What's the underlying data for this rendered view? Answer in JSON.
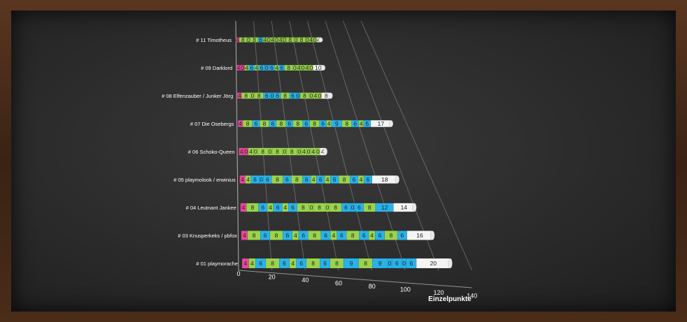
{
  "chart_data": {
    "type": "bar",
    "orientation": "horizontal",
    "stacked": true,
    "view": "3d-perspective",
    "xlabel": "Einzelpunkte",
    "xlim": [
      0,
      140
    ],
    "xticks": [
      0,
      20,
      40,
      60,
      80,
      100,
      120,
      140
    ],
    "grid": true,
    "legend": "none",
    "categories": [
      "# 11 Timotheus",
      "# 09 Darklord",
      "# 08 Elfenzauber / Junker Jörg",
      "# 07 Die Osebergs",
      "# 06 Schoko-Queen",
      "# 05 playmolook / erwinius",
      "# 04 Leutnant Jankee",
      "# 03 Knusperkeks / pbfox",
      "# 01 playmorache"
    ],
    "colors": {
      "pink": "#e8479a",
      "green": "#9bd44c",
      "blue": "#29b2ea",
      "white": "#f4f4f4"
    },
    "rows": [
      {
        "segments": [
          {
            "v": 4,
            "c": "pink"
          },
          {
            "v": 8,
            "c": "green"
          },
          {
            "v": 0,
            "c": "green"
          },
          {
            "v": 8,
            "c": "green"
          },
          {
            "v": 6,
            "c": "blue"
          },
          {
            "v": 4,
            "c": "green"
          },
          {
            "v": 0,
            "c": "green"
          },
          {
            "v": 4,
            "c": "green"
          },
          {
            "v": 0,
            "c": "green"
          },
          {
            "v": 4,
            "c": "green"
          },
          {
            "v": 0,
            "c": "green"
          },
          {
            "v": 8,
            "c": "green"
          },
          {
            "v": 0,
            "c": "green"
          },
          {
            "v": 8,
            "c": "green"
          },
          {
            "v": 0,
            "c": "green"
          },
          {
            "v": 4,
            "c": "green"
          },
          {
            "v": 0,
            "c": "green"
          },
          {
            "v": 4,
            "c": "white"
          }
        ]
      },
      {
        "segments": [
          {
            "v": 4,
            "c": "pink"
          },
          {
            "v": 0,
            "c": "pink"
          },
          {
            "v": 4,
            "c": "green"
          },
          {
            "v": 6,
            "c": "blue"
          },
          {
            "v": 4,
            "c": "green"
          },
          {
            "v": 6,
            "c": "blue"
          },
          {
            "v": 0,
            "c": "blue"
          },
          {
            "v": 6,
            "c": "blue"
          },
          {
            "v": 4,
            "c": "green"
          },
          {
            "v": 6,
            "c": "blue"
          },
          {
            "v": 8,
            "c": "green"
          },
          {
            "v": 0,
            "c": "green"
          },
          {
            "v": 4,
            "c": "green"
          },
          {
            "v": 0,
            "c": "green"
          },
          {
            "v": 4,
            "c": "green"
          },
          {
            "v": 0,
            "c": "green"
          },
          {
            "v": 10,
            "c": "white"
          }
        ]
      },
      {
        "segments": [
          {
            "v": 4,
            "c": "pink"
          },
          {
            "v": 8,
            "c": "green"
          },
          {
            "v": 0,
            "c": "green"
          },
          {
            "v": 8,
            "c": "green"
          },
          {
            "v": 6,
            "c": "blue"
          },
          {
            "v": 0,
            "c": "blue"
          },
          {
            "v": 6,
            "c": "blue"
          },
          {
            "v": 8,
            "c": "green"
          },
          {
            "v": 6,
            "c": "blue"
          },
          {
            "v": 0,
            "c": "blue"
          },
          {
            "v": 8,
            "c": "green"
          },
          {
            "v": 0,
            "c": "green"
          },
          {
            "v": 4,
            "c": "green"
          },
          {
            "v": 0,
            "c": "green"
          },
          {
            "v": 8,
            "c": "white"
          }
        ]
      },
      {
        "segments": [
          {
            "v": 4,
            "c": "pink"
          },
          {
            "v": 8,
            "c": "green"
          },
          {
            "v": 6,
            "c": "blue"
          },
          {
            "v": 8,
            "c": "green"
          },
          {
            "v": 6,
            "c": "blue"
          },
          {
            "v": 8,
            "c": "green"
          },
          {
            "v": 6,
            "c": "blue"
          },
          {
            "v": 8,
            "c": "green"
          },
          {
            "v": 6,
            "c": "blue"
          },
          {
            "v": 8,
            "c": "green"
          },
          {
            "v": 6,
            "c": "blue"
          },
          {
            "v": 4,
            "c": "green"
          },
          {
            "v": 9,
            "c": "blue"
          },
          {
            "v": 8,
            "c": "green"
          },
          {
            "v": 6,
            "c": "blue"
          },
          {
            "v": 4,
            "c": "green"
          },
          {
            "v": 6,
            "c": "blue"
          },
          {
            "v": 17,
            "c": "white"
          }
        ]
      },
      {
        "segments": [
          {
            "v": 4,
            "c": "pink"
          },
          {
            "v": 0,
            "c": "pink"
          },
          {
            "v": 4,
            "c": "green"
          },
          {
            "v": 0,
            "c": "green"
          },
          {
            "v": 8,
            "c": "green"
          },
          {
            "v": 0,
            "c": "green"
          },
          {
            "v": 8,
            "c": "green"
          },
          {
            "v": 0,
            "c": "green"
          },
          {
            "v": 8,
            "c": "green"
          },
          {
            "v": 0,
            "c": "green"
          },
          {
            "v": 4,
            "c": "green"
          },
          {
            "v": 0,
            "c": "green"
          },
          {
            "v": 4,
            "c": "green"
          },
          {
            "v": 0,
            "c": "green"
          },
          {
            "v": 4,
            "c": "white"
          }
        ]
      },
      {
        "segments": [
          {
            "v": 4,
            "c": "pink"
          },
          {
            "v": 4,
            "c": "green"
          },
          {
            "v": 6,
            "c": "blue"
          },
          {
            "v": 0,
            "c": "blue"
          },
          {
            "v": 6,
            "c": "blue"
          },
          {
            "v": 8,
            "c": "green"
          },
          {
            "v": 6,
            "c": "blue"
          },
          {
            "v": 8,
            "c": "green"
          },
          {
            "v": 6,
            "c": "blue"
          },
          {
            "v": 4,
            "c": "green"
          },
          {
            "v": 6,
            "c": "blue"
          },
          {
            "v": 4,
            "c": "green"
          },
          {
            "v": 6,
            "c": "blue"
          },
          {
            "v": 8,
            "c": "green"
          },
          {
            "v": 6,
            "c": "blue"
          },
          {
            "v": 4,
            "c": "green"
          },
          {
            "v": 6,
            "c": "blue"
          },
          {
            "v": 18,
            "c": "white"
          }
        ]
      },
      {
        "segments": [
          {
            "v": 4,
            "c": "pink"
          },
          {
            "v": 8,
            "c": "green"
          },
          {
            "v": 6,
            "c": "blue"
          },
          {
            "v": 4,
            "c": "green"
          },
          {
            "v": 6,
            "c": "blue"
          },
          {
            "v": 4,
            "c": "green"
          },
          {
            "v": 6,
            "c": "blue"
          },
          {
            "v": 8,
            "c": "green"
          },
          {
            "v": 0,
            "c": "green"
          },
          {
            "v": 8,
            "c": "green"
          },
          {
            "v": 0,
            "c": "green"
          },
          {
            "v": 8,
            "c": "green"
          },
          {
            "v": 6,
            "c": "blue"
          },
          {
            "v": 0,
            "c": "blue"
          },
          {
            "v": 6,
            "c": "blue"
          },
          {
            "v": 8,
            "c": "green"
          },
          {
            "v": 12,
            "c": "blue"
          },
          {
            "v": 14,
            "c": "white"
          }
        ]
      },
      {
        "segments": [
          {
            "v": 4,
            "c": "pink"
          },
          {
            "v": 8,
            "c": "green"
          },
          {
            "v": 6,
            "c": "blue"
          },
          {
            "v": 8,
            "c": "green"
          },
          {
            "v": 6,
            "c": "blue"
          },
          {
            "v": 4,
            "c": "green"
          },
          {
            "v": 6,
            "c": "blue"
          },
          {
            "v": 8,
            "c": "green"
          },
          {
            "v": 6,
            "c": "blue"
          },
          {
            "v": 4,
            "c": "green"
          },
          {
            "v": 6,
            "c": "blue"
          },
          {
            "v": 8,
            "c": "green"
          },
          {
            "v": 6,
            "c": "blue"
          },
          {
            "v": 4,
            "c": "green"
          },
          {
            "v": 6,
            "c": "blue"
          },
          {
            "v": 8,
            "c": "green"
          },
          {
            "v": 6,
            "c": "blue"
          },
          {
            "v": 16,
            "c": "white"
          }
        ]
      },
      {
        "segments": [
          {
            "v": 4,
            "c": "pink"
          },
          {
            "v": 4,
            "c": "green"
          },
          {
            "v": 6,
            "c": "blue"
          },
          {
            "v": 8,
            "c": "green"
          },
          {
            "v": 6,
            "c": "blue"
          },
          {
            "v": 4,
            "c": "green"
          },
          {
            "v": 6,
            "c": "blue"
          },
          {
            "v": 8,
            "c": "green"
          },
          {
            "v": 6,
            "c": "blue"
          },
          {
            "v": 8,
            "c": "green"
          },
          {
            "v": 9,
            "c": "blue"
          },
          {
            "v": 8,
            "c": "green"
          },
          {
            "v": 9,
            "c": "blue"
          },
          {
            "v": 0,
            "c": "blue"
          },
          {
            "v": 6,
            "c": "blue"
          },
          {
            "v": 0,
            "c": "blue"
          },
          {
            "v": 6,
            "c": "blue"
          },
          {
            "v": 20,
            "c": "white"
          }
        ]
      }
    ]
  }
}
